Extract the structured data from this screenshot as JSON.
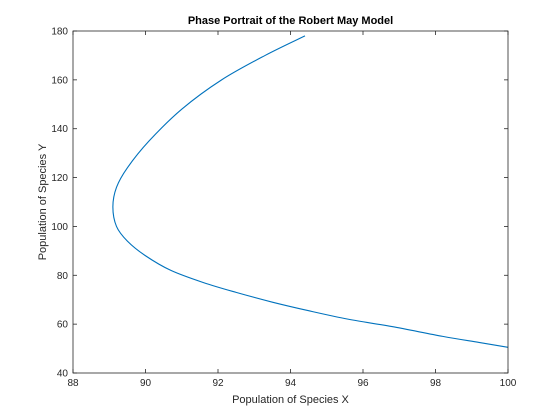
{
  "chart_data": {
    "type": "line",
    "title": "Phase Portrait of the Robert May Model",
    "xlabel": "Population of Species X",
    "ylabel": "Population of Species Y",
    "xlim": [
      88,
      100
    ],
    "ylim": [
      40,
      180
    ],
    "xticks": [
      88,
      90,
      92,
      94,
      96,
      98,
      100
    ],
    "yticks": [
      40,
      60,
      80,
      100,
      120,
      140,
      160,
      180
    ],
    "grid": false,
    "box": true,
    "series": [
      {
        "color": "#0072BD",
        "points": [
          [
            94.4,
            178
          ],
          [
            93.3,
            170
          ],
          [
            92.1,
            160
          ],
          [
            91.0,
            148
          ],
          [
            90.1,
            135
          ],
          [
            89.5,
            124
          ],
          [
            89.2,
            116
          ],
          [
            89.1,
            108
          ],
          [
            89.2,
            100
          ],
          [
            89.5,
            94
          ],
          [
            90.0,
            88
          ],
          [
            90.7,
            82
          ],
          [
            91.6,
            77
          ],
          [
            92.5,
            73
          ],
          [
            93.5,
            69
          ],
          [
            94.5,
            65.5
          ],
          [
            95.6,
            62
          ],
          [
            96.8,
            59
          ],
          [
            98.2,
            55
          ],
          [
            99.2,
            52.5
          ],
          [
            100,
            50.5
          ]
        ]
      }
    ]
  }
}
